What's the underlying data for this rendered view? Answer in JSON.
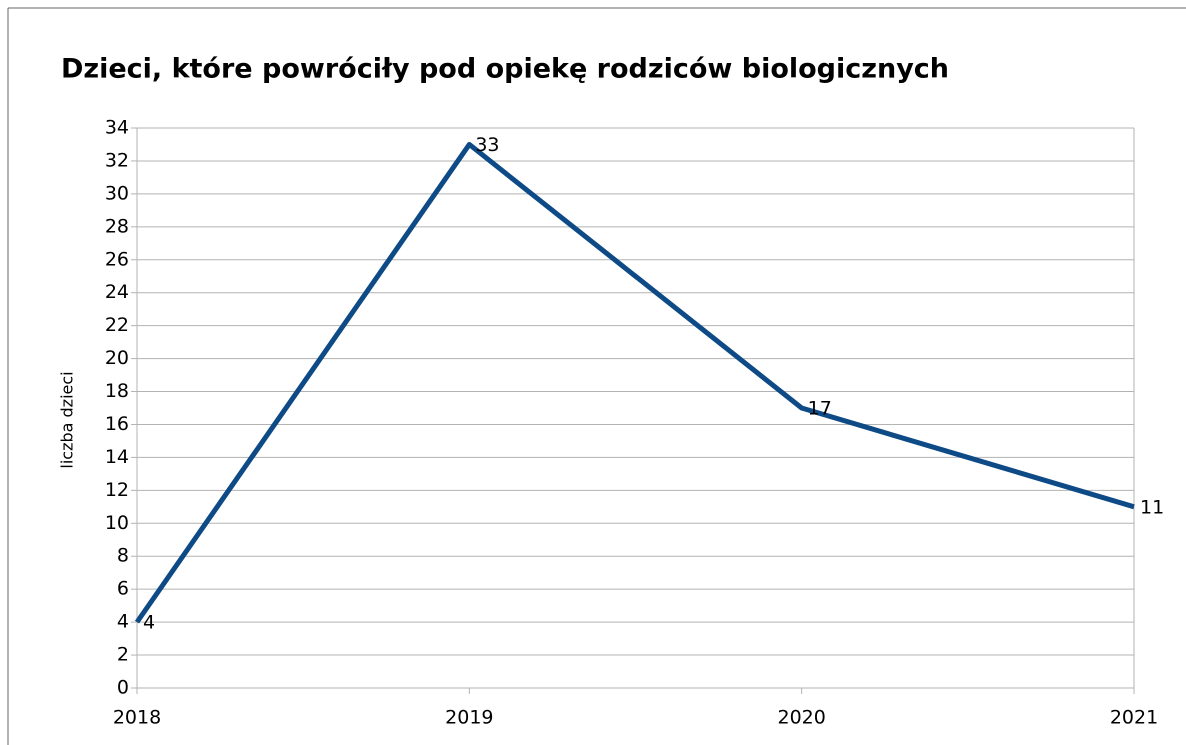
{
  "chart_data": {
    "type": "line",
    "title": "Dzieci, które powróciły pod opiekę rodziców biologicznych",
    "ylabel": "liczba dzieci",
    "x": [
      2018,
      2019,
      2020,
      2021
    ],
    "xlim": [
      2018,
      2021
    ],
    "xticks": [
      2018,
      2019,
      2020,
      2021
    ],
    "series": [
      {
        "name": "liczba dzieci",
        "color": "#0d4a86",
        "values": [
          4,
          33,
          17,
          11
        ]
      }
    ],
    "ylim": [
      0,
      34
    ],
    "yticks": [
      0,
      2,
      4,
      6,
      8,
      10,
      12,
      14,
      16,
      18,
      20,
      22,
      24,
      26,
      28,
      30,
      32,
      34
    ],
    "grid": true,
    "data_labels": true
  }
}
